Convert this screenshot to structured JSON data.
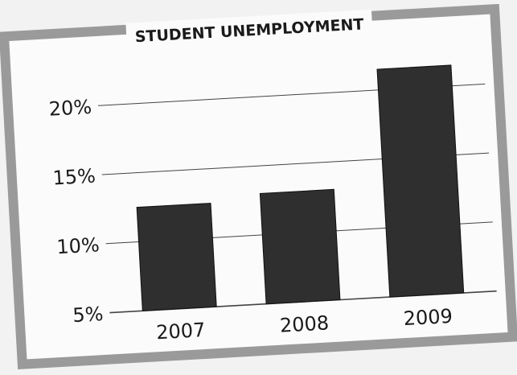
{
  "chart_data": {
    "type": "bar",
    "title": "STUDENT UNEMPLOYMENT",
    "categories": [
      "2007",
      "2008",
      "2009"
    ],
    "values": [
      12.5,
      13.0,
      21.5
    ],
    "yticks": [
      "5%",
      "10%",
      "15%",
      "20%"
    ],
    "ytick_values": [
      5,
      10,
      15,
      20
    ],
    "ylim": [
      5,
      22
    ],
    "xlabel": "",
    "ylabel": "",
    "grid": true,
    "legend": "none"
  },
  "colors": {
    "frame": "#9a9a9a",
    "panel": "#fbfbfb",
    "bar": "#2f2f2f",
    "text": "#1a1a1a",
    "grid": "#444444"
  }
}
